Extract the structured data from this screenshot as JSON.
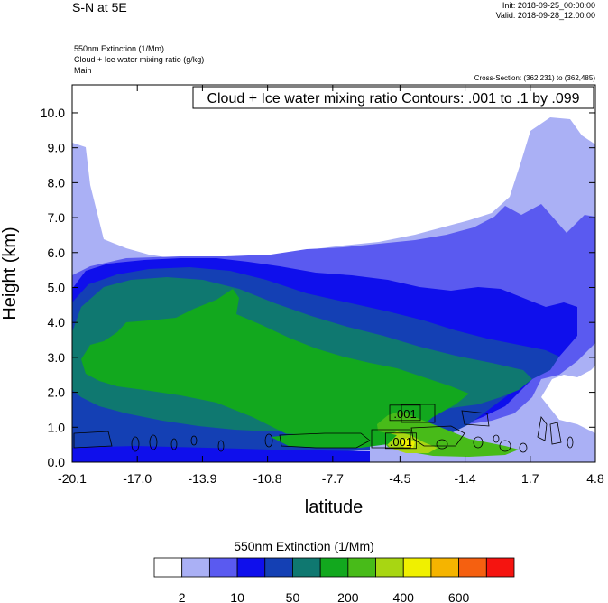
{
  "header": {
    "title": "S-N at 5E",
    "init": "Init: 2018-09-25_00:00:00",
    "valid": "Valid: 2018-09-28_12:00:00",
    "field_lines": [
      "550nm Extinction   (1/Mm)",
      "Cloud + Ice water mixing ratio   (g/kg)",
      "Main"
    ],
    "cross_section": "Cross-Section: (362,231) to (362,485)"
  },
  "chart_data": {
    "type": "heatmap",
    "xlabel": "latitude",
    "ylabel": "Height (km)",
    "x_ticks": [
      -20.1,
      -17.0,
      -13.9,
      -10.8,
      -7.7,
      -4.5,
      -1.4,
      1.7,
      4.8
    ],
    "x_tick_labels": [
      "-20.1",
      "-17.0",
      "-13.9",
      "-10.8",
      "-7.7",
      "-4.5",
      "-1.4",
      "1.7",
      "4.8"
    ],
    "xlim": [
      -20.1,
      4.8
    ],
    "y_ticks": [
      0,
      1,
      2,
      3,
      4,
      5,
      6,
      7,
      8,
      9,
      10
    ],
    "y_tick_labels": [
      "0.0",
      "1.0",
      "2.0",
      "3.0",
      "4.0",
      "5.0",
      "6.0",
      "7.0",
      "8.0",
      "9.0",
      "10.0"
    ],
    "ylim": [
      0,
      10.8
    ],
    "contour_title": "Cloud + Ice water mixing ratio Contours: .001 to .1 by .099",
    "contour_labels": [
      {
        "text": ".001",
        "x": -4.3,
        "y": 1.4
      },
      {
        "text": ".001",
        "x": -4.5,
        "y": 0.6
      }
    ],
    "colorbar": {
      "title": "550nm Extinction  (1/Mm)",
      "colors": [
        "#ffffff",
        "#aab0f5",
        "#5a5af0",
        "#0f0fec",
        "#1440b4",
        "#0f7870",
        "#12a81e",
        "#48bb19",
        "#a8d612",
        "#f0f000",
        "#f5b400",
        "#f56010",
        "#f51410"
      ],
      "labels": [
        "2",
        "10",
        "50",
        "200",
        "400",
        "600"
      ]
    },
    "fill_colors": {
      "white": "#ffffff",
      "lavender": "#aab0f5",
      "periwinkle": "#5a5af0",
      "blue": "#0f0fec",
      "dark_blue": "#1440b4",
      "teal": "#0f7870",
      "green": "#12a81e",
      "light_green": "#48bb19",
      "yellow_green": "#a8d612",
      "yellow": "#f0f000"
    }
  }
}
